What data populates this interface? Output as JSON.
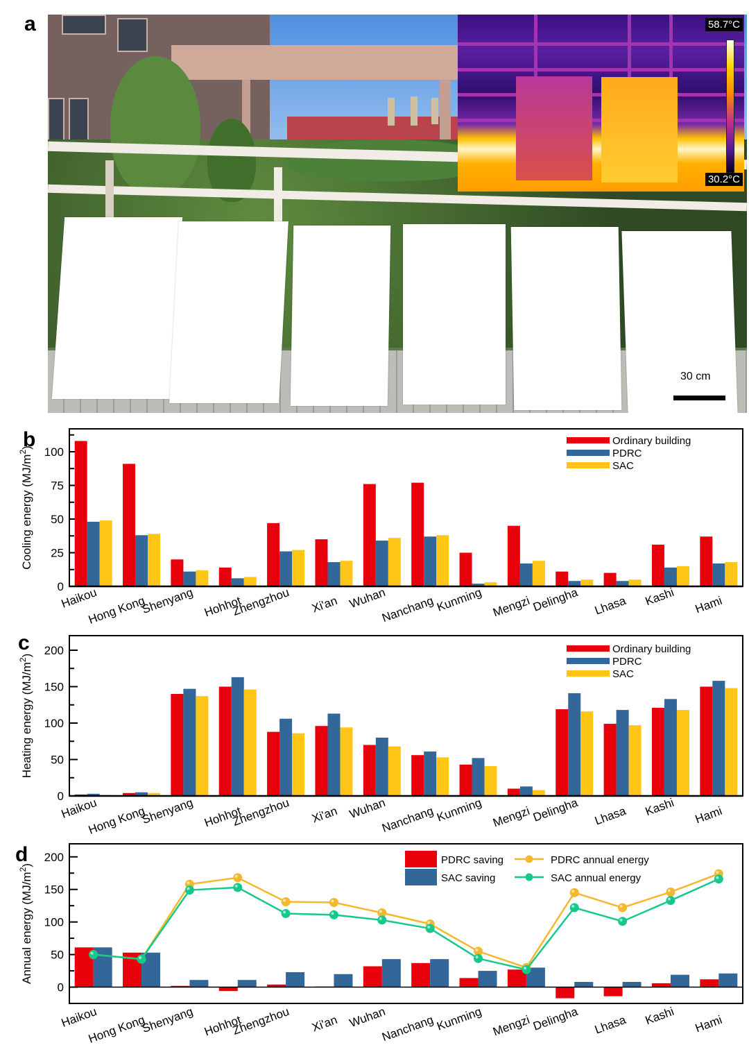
{
  "figure": {
    "panels": {
      "a": {
        "label": "a"
      },
      "b": {
        "label": "b"
      },
      "c": {
        "label": "c"
      },
      "d": {
        "label": "d"
      }
    },
    "photo": {
      "description": "Outdoor photograph of six white coated panels leaning against a railing on a rooftop",
      "panel_count": 6,
      "scale_bar_label": "30 cm",
      "thermal_inset": {
        "max_temp_label": "58.7°C",
        "min_temp_label": "30.2°C"
      }
    },
    "colors": {
      "ordinary": "#e8000b",
      "pdrc": "#336699",
      "sac": "#ffc517",
      "pdrc_line": "#f4b82e",
      "sac_line": "#16c98a"
    }
  },
  "chart_data": [
    {
      "id": "b",
      "type": "bar",
      "title": "",
      "xlabel": "",
      "ylabel": "Cooling energy (MJ/m2)",
      "ylabel_main": "Cooling energy (MJ/m",
      "ylabel_sup": "2",
      "ylabel_end": ")",
      "ylim": [
        0,
        117
      ],
      "yticks": [
        0,
        25,
        50,
        75,
        100
      ],
      "yticks_minor": [
        12.5,
        37.5,
        62.5,
        87.5,
        112.5
      ],
      "grid": false,
      "legend_position": "top-right",
      "categories": [
        "Haikou",
        "Hong Kong",
        "Shenyang",
        "Hohhot",
        "Zhengzhou",
        "Xi'an",
        "Wuhan",
        "Nanchang",
        "Kunming",
        "Mengzi",
        "Delingha",
        "Lhasa",
        "Kashi",
        "Hami"
      ],
      "series": [
        {
          "name": "Ordinary building",
          "color": "#e8000b",
          "values": [
            108,
            91,
            20,
            14,
            47,
            35,
            76,
            77,
            25,
            45,
            11,
            10,
            31,
            37
          ]
        },
        {
          "name": "PDRC",
          "color": "#336699",
          "values": [
            48,
            38,
            11,
            6,
            26,
            18,
            34,
            37,
            2,
            17,
            4,
            4,
            14,
            17
          ]
        },
        {
          "name": "SAC",
          "color": "#ffc517",
          "values": [
            49,
            39,
            12,
            7,
            27,
            19,
            36,
            38,
            3,
            19,
            5,
            5,
            15,
            18
          ]
        }
      ]
    },
    {
      "id": "c",
      "type": "bar",
      "title": "",
      "xlabel": "",
      "ylabel": "Heating energy (MJ/m2)",
      "ylabel_main": "Heating energy (MJ/m",
      "ylabel_sup": "2",
      "ylabel_end": ")",
      "ylim": [
        0,
        220
      ],
      "yticks": [
        0,
        50,
        100,
        150,
        200
      ],
      "yticks_minor": [
        25,
        75,
        125,
        175
      ],
      "grid": false,
      "legend_position": "top-right",
      "categories": [
        "Haikou",
        "Hong Kong",
        "Shenyang",
        "Hohhot",
        "Zhengzhou",
        "Xi'an",
        "Wuhan",
        "Nanchang",
        "Kunming",
        "Mengzi",
        "Delingha",
        "Lhasa",
        "Kashi",
        "Hami"
      ],
      "series": [
        {
          "name": "Ordinary building",
          "color": "#e8000b",
          "values": [
            2,
            4,
            140,
            150,
            88,
            96,
            70,
            56,
            43,
            10,
            119,
            99,
            121,
            150
          ]
        },
        {
          "name": "PDRC",
          "color": "#336699",
          "values": [
            3,
            5,
            147,
            163,
            106,
            113,
            80,
            61,
            52,
            13,
            141,
            118,
            133,
            158
          ]
        },
        {
          "name": "SAC",
          "color": "#ffc517",
          "values": [
            1.5,
            4,
            137,
            146,
            86,
            94,
            68,
            53,
            41,
            8,
            116,
            97,
            118,
            148
          ]
        }
      ]
    },
    {
      "id": "d",
      "type": "bar",
      "combo": "bar+line",
      "title": "",
      "xlabel": "",
      "ylabel": "Annual energy (MJ/m2)",
      "ylabel_main": "Annual energy (MJ/m",
      "ylabel_sup": "2",
      "ylabel_end": ")",
      "ylim": [
        -25,
        220
      ],
      "yticks": [
        0,
        50,
        100,
        150,
        200
      ],
      "yticks_minor": [
        25,
        75,
        125,
        175
      ],
      "grid": false,
      "legend_position": "top-right",
      "categories": [
        "Haikou",
        "Hong Kong",
        "Shenyang",
        "Hohhot",
        "Zhengzhou",
        "Xi'an",
        "Wuhan",
        "Nanchang",
        "Kunming",
        "Mengzi",
        "Delingha",
        "Lhasa",
        "Kashi",
        "Hami"
      ],
      "series": [
        {
          "name": "PDRC saving",
          "kind": "bar",
          "color": "#e8000b",
          "values": [
            61,
            53,
            2,
            -6,
            4,
            1,
            32,
            37,
            14,
            27,
            -17,
            -14,
            6,
            12
          ]
        },
        {
          "name": "SAC saving",
          "kind": "bar",
          "color": "#336699",
          "values": [
            61,
            53,
            11,
            11,
            23,
            20,
            43,
            43,
            25,
            30,
            8,
            8,
            19,
            21
          ]
        },
        {
          "name": "PDRC annual energy",
          "kind": "line",
          "color": "#f4b82e",
          "values": [
            50,
            43,
            158,
            168,
            131,
            130,
            114,
            97,
            55,
            30,
            145,
            122,
            146,
            174
          ]
        },
        {
          "name": "SAC annual energy",
          "kind": "line",
          "color": "#16c98a",
          "values": [
            50,
            43,
            149,
            153,
            113,
            111,
            103,
            90,
            44,
            27,
            122,
            101,
            133,
            166
          ]
        }
      ]
    }
  ]
}
